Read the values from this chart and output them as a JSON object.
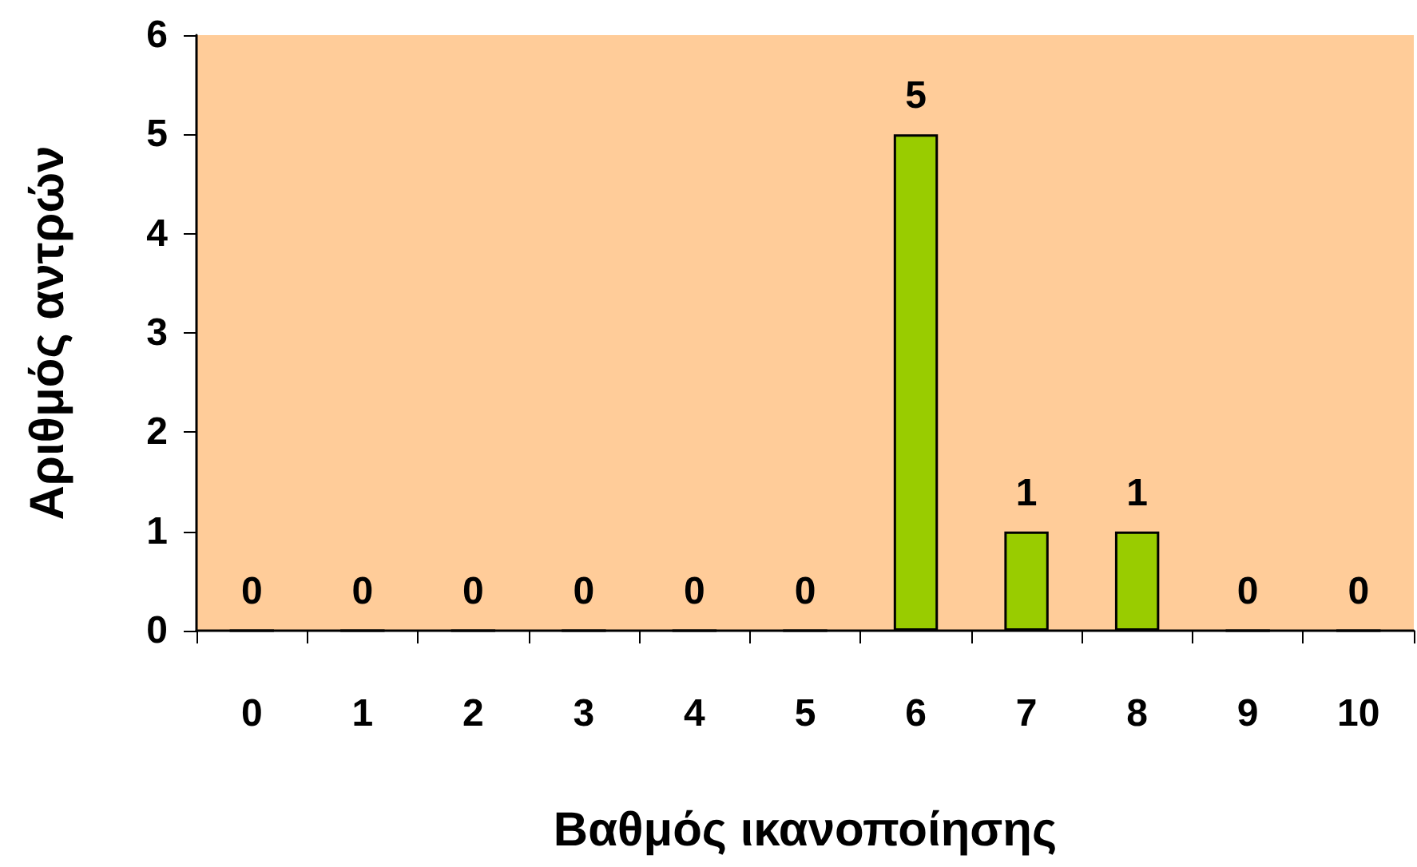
{
  "chart_data": {
    "type": "bar",
    "xlabel": "Βαθμός ικανοποίησης",
    "ylabel": "Αριθμός αντρών",
    "categories": [
      "0",
      "1",
      "2",
      "3",
      "4",
      "5",
      "6",
      "7",
      "8",
      "9",
      "10"
    ],
    "values": [
      0,
      0,
      0,
      0,
      0,
      0,
      5,
      1,
      1,
      0,
      0
    ],
    "color": "#99cc00",
    "ylim": [
      0,
      6
    ],
    "yticks": [
      0,
      1,
      2,
      3,
      4,
      5,
      6
    ],
    "grid": false,
    "data_labels": true
  }
}
